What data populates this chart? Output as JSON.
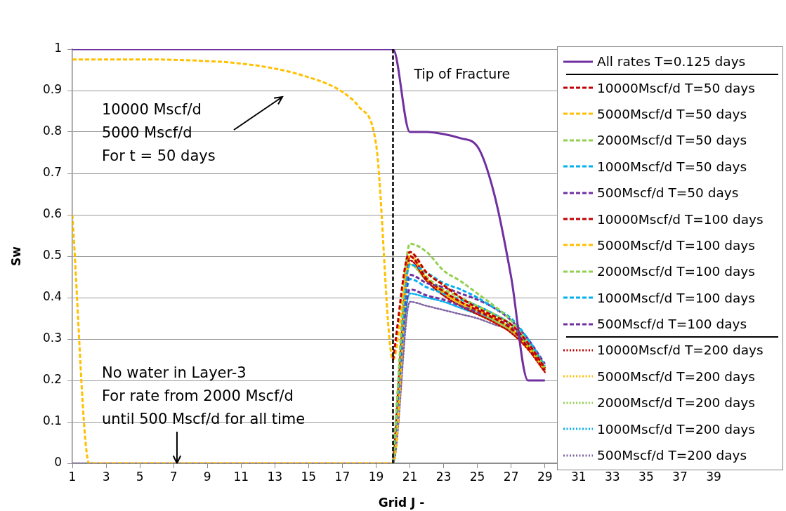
{
  "chart_data": {
    "type": "line",
    "xlabel": "Grid J -",
    "ylabel": "Sw",
    "x": [
      1,
      2,
      3,
      4,
      5,
      6,
      7,
      8,
      9,
      10,
      11,
      12,
      13,
      14,
      15,
      16,
      17,
      18,
      19,
      20,
      21,
      22,
      23,
      24,
      25,
      26,
      27,
      28,
      29
    ],
    "xlim": [
      1,
      40
    ],
    "xticks": [
      1,
      3,
      5,
      7,
      9,
      11,
      13,
      15,
      17,
      19,
      21,
      23,
      25,
      27,
      29,
      31,
      33,
      35,
      37,
      39
    ],
    "ylim": [
      0,
      1
    ],
    "yticks": [
      0,
      0.1,
      0.2,
      0.3,
      0.4,
      0.5,
      0.6,
      0.7,
      0.8,
      0.9,
      1
    ],
    "grid": "y",
    "legend": "right",
    "marker": "none",
    "ref_lines": [
      {
        "axis": "x",
        "value": 20,
        "label": "Tip of Fracture",
        "color": "#000000",
        "line_style": "dashed"
      }
    ],
    "annotations": [
      "10000 Mscf/d\n5000 Mscf/d\nFor t = 50 days",
      {
        "text": "No water in Layer-3\nFor rate from 2000 Mscf/d\nuntil 500 Mscf/d for all time",
        "x": 7.2,
        "y": 0
      }
    ],
    "series": [
      {
        "name": "All rates T=0.125 days",
        "color": "#7030a0",
        "line_style": "solid",
        "values": [
          1,
          1,
          1,
          1,
          1,
          1,
          1,
          1,
          1,
          1,
          1,
          1,
          1,
          1,
          1,
          1,
          1,
          1,
          1,
          1,
          0.8,
          0.8,
          0.795,
          0.785,
          0.765,
          0.65,
          0.45,
          0.2,
          0.2
        ]
      },
      {
        "name": "10000Mscf/d T=50 days",
        "color": "#c00000",
        "line_style": "dashed",
        "values": [
          null,
          null,
          null,
          null,
          null,
          null,
          null,
          null,
          null,
          null,
          null,
          null,
          null,
          null,
          null,
          null,
          null,
          null,
          null,
          0.25,
          0.51,
          0.46,
          0.43,
          0.4,
          0.375,
          0.355,
          0.335,
          0.29,
          0.23
        ]
      },
      {
        "name": "5000Mscf/d T=50 days",
        "color": "#ffc000",
        "line_style": "dashed",
        "values": [
          0.975,
          0.975,
          0.975,
          0.975,
          0.975,
          0.975,
          0.974,
          0.973,
          0.971,
          0.969,
          0.965,
          0.96,
          0.953,
          0.944,
          0.932,
          0.918,
          0.897,
          0.86,
          0.77,
          0.25,
          0.51,
          0.46,
          0.43,
          0.4,
          0.375,
          0.355,
          0.335,
          0.29,
          0.23
        ]
      },
      {
        "name": "2000Mscf/d T=50 days",
        "color": "#92d050",
        "line_style": "dashed",
        "values": [
          null,
          null,
          null,
          null,
          null,
          null,
          null,
          null,
          null,
          null,
          null,
          null,
          null,
          null,
          null,
          null,
          null,
          null,
          null,
          0,
          0.53,
          0.51,
          0.465,
          0.44,
          0.41,
          0.38,
          0.345,
          0.29,
          0.23
        ]
      },
      {
        "name": "1000Mscf/d T=50 days",
        "color": "#00b0f0",
        "line_style": "dashed",
        "values": [
          null,
          null,
          null,
          null,
          null,
          null,
          null,
          null,
          null,
          null,
          null,
          null,
          null,
          null,
          null,
          null,
          null,
          null,
          null,
          0,
          0.48,
          0.46,
          0.435,
          0.42,
          0.4,
          0.375,
          0.35,
          0.3,
          0.235
        ]
      },
      {
        "name": "500Mscf/d T=50 days",
        "color": "#7030a0",
        "line_style": "dashed",
        "values": [
          null,
          null,
          null,
          null,
          null,
          null,
          null,
          null,
          null,
          null,
          null,
          null,
          null,
          null,
          null,
          null,
          null,
          null,
          null,
          0,
          0.455,
          0.435,
          0.425,
          0.41,
          0.395,
          0.375,
          0.345,
          0.3,
          0.24
        ]
      },
      {
        "name": "10000Mscf/d T=100 days",
        "color": "#c00000",
        "line_style": "dashed",
        "values": [
          null,
          null,
          null,
          null,
          null,
          null,
          null,
          null,
          null,
          null,
          null,
          null,
          null,
          null,
          null,
          null,
          null,
          null,
          null,
          0,
          0.5,
          0.445,
          0.415,
          0.39,
          0.37,
          0.35,
          0.325,
          0.28,
          0.225
        ]
      },
      {
        "name": "5000Mscf/d T=100 days",
        "color": "#ffc000",
        "line_style": "dashed",
        "values": [
          0.6,
          0,
          0,
          0,
          0,
          0,
          0,
          0,
          0,
          0,
          0,
          0,
          0,
          0,
          0,
          0,
          0,
          0,
          0,
          0,
          0.5,
          0.445,
          0.415,
          0.39,
          0.37,
          0.35,
          0.325,
          0.28,
          0.225
        ]
      },
      {
        "name": "2000Mscf/d T=100 days",
        "color": "#92d050",
        "line_style": "dashed",
        "values": [
          null,
          null,
          null,
          null,
          null,
          null,
          null,
          null,
          null,
          null,
          null,
          null,
          null,
          null,
          null,
          null,
          null,
          null,
          null,
          0,
          0.5,
          0.45,
          0.42,
          0.4,
          0.38,
          0.36,
          0.335,
          0.29,
          0.23
        ]
      },
      {
        "name": "1000Mscf/d T=100 days",
        "color": "#00b0f0",
        "line_style": "dashed",
        "values": [
          null,
          null,
          null,
          null,
          null,
          null,
          null,
          null,
          null,
          null,
          null,
          null,
          null,
          null,
          null,
          null,
          null,
          null,
          null,
          0,
          0.445,
          0.425,
          0.41,
          0.395,
          0.38,
          0.36,
          0.335,
          0.29,
          0.23
        ]
      },
      {
        "name": "500Mscf/d T=100 days",
        "color": "#7030a0",
        "line_style": "dashed",
        "values": [
          null,
          null,
          null,
          null,
          null,
          null,
          null,
          null,
          null,
          null,
          null,
          null,
          null,
          null,
          null,
          null,
          null,
          null,
          null,
          0,
          0.42,
          0.405,
          0.395,
          0.38,
          0.365,
          0.35,
          0.33,
          0.29,
          0.23
        ]
      },
      {
        "name": "10000Mscf/d T=200 days",
        "color": "#c00000",
        "line_style": "dotted",
        "values": [
          null,
          null,
          null,
          null,
          null,
          null,
          null,
          null,
          null,
          null,
          null,
          null,
          null,
          null,
          null,
          null,
          null,
          null,
          null,
          0,
          0.49,
          0.44,
          0.405,
          0.38,
          0.36,
          0.34,
          0.315,
          0.275,
          0.22
        ]
      },
      {
        "name": "5000Mscf/d T=200 days",
        "color": "#ffc000",
        "line_style": "dotted",
        "values": [
          null,
          null,
          null,
          null,
          null,
          null,
          null,
          null,
          null,
          null,
          null,
          null,
          null,
          null,
          null,
          null,
          null,
          null,
          null,
          0,
          0.5,
          0.445,
          0.41,
          0.385,
          0.36,
          0.34,
          0.315,
          0.275,
          null
        ]
      },
      {
        "name": "2000Mscf/d T=200 days",
        "color": "#92d050",
        "line_style": "dotted",
        "values": [
          null,
          null,
          null,
          null,
          null,
          null,
          null,
          null,
          null,
          null,
          null,
          null,
          null,
          null,
          null,
          null,
          null,
          null,
          null,
          0,
          0.48,
          0.44,
          0.41,
          0.385,
          0.365,
          0.345,
          0.32,
          0.28,
          0.225
        ]
      },
      {
        "name": "1000Mscf/d T=200 days",
        "color": "#00b0f0",
        "line_style": "dotted",
        "values": [
          null,
          null,
          null,
          null,
          null,
          null,
          null,
          null,
          null,
          null,
          null,
          null,
          null,
          null,
          null,
          null,
          null,
          null,
          null,
          0,
          0.41,
          0.4,
          0.39,
          0.375,
          0.36,
          0.345,
          0.325,
          0.285,
          0.23
        ]
      },
      {
        "name": "500Mscf/d T=200 days",
        "color": "#8064a2",
        "line_style": "dotted",
        "values": [
          0,
          0,
          0,
          0,
          0,
          0,
          0,
          0,
          0,
          0,
          0,
          0,
          0,
          0,
          0,
          0,
          0,
          0,
          0,
          0,
          0.39,
          0.38,
          0.37,
          0.36,
          0.35,
          0.335,
          0.32,
          0.285,
          0.23
        ]
      }
    ]
  }
}
